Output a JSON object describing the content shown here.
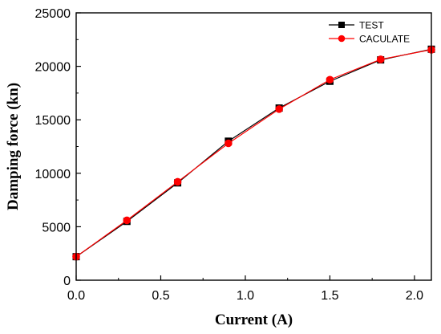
{
  "chart_data": {
    "type": "line",
    "title": "",
    "xlabel": "Current (A)",
    "ylabel": "Damping force (kn)",
    "xlim": [
      0.0,
      2.1
    ],
    "ylim": [
      0,
      25000
    ],
    "x_ticks": [
      "0.0",
      "0.5",
      "1.0",
      "1.5",
      "2.0"
    ],
    "x_tick_values": [
      0.0,
      0.5,
      1.0,
      1.5,
      2.0
    ],
    "y_ticks": [
      "0",
      "5000",
      "10000",
      "15000",
      "20000",
      "25000"
    ],
    "y_tick_values": [
      0,
      5000,
      10000,
      15000,
      20000,
      25000
    ],
    "grid": false,
    "legend_position": "top-right",
    "series": [
      {
        "name": "TEST",
        "color": "#000000",
        "marker": "square",
        "x": [
          0.0,
          0.3,
          0.6,
          0.9,
          1.2,
          1.5,
          1.8,
          2.1
        ],
        "y": [
          2200,
          5500,
          9100,
          13000,
          16100,
          18600,
          20600,
          21600
        ]
      },
      {
        "name": "CACULATE",
        "color": "#ff0000",
        "marker": "circle",
        "x": [
          0.0,
          0.3,
          0.6,
          0.9,
          1.2,
          1.5,
          1.8,
          2.1
        ],
        "y": [
          2200,
          5600,
          9200,
          12800,
          16000,
          18750,
          20650,
          21550
        ]
      }
    ]
  }
}
